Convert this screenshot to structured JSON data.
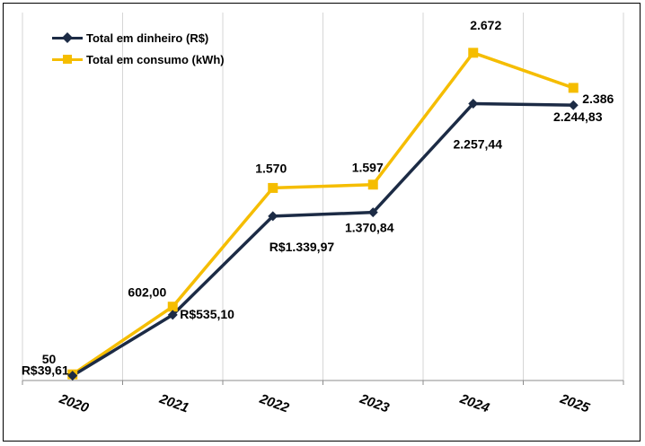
{
  "chart_data": {
    "type": "line",
    "title": "",
    "xlabel": "",
    "ylabel": "",
    "categories": [
      "2020",
      "2021",
      "2022",
      "2023",
      "2024",
      "2025"
    ],
    "ylim": [
      0,
      3000
    ],
    "grid": "vertical",
    "legend_position": "top-left",
    "series": [
      {
        "name": "Total em dinheiro (R$)",
        "color": "#1c2b45",
        "marker": "diamond",
        "values": [
          39.61,
          535.1,
          1339.97,
          1370.84,
          2257.44,
          2244.83
        ],
        "labels": [
          "R$39,61",
          "R$535,10",
          "R$1.339,97",
          "1.370,84",
          "2.257,44",
          "2.244,83"
        ]
      },
      {
        "name": "Total em consumo (kWh)",
        "color": "#f5bd00",
        "marker": "square",
        "values": [
          50,
          602,
          1570,
          1597,
          2672,
          2386
        ],
        "labels": [
          "50",
          "602,00",
          "1.570",
          "1.597",
          "2.672",
          "2.386"
        ]
      }
    ]
  }
}
